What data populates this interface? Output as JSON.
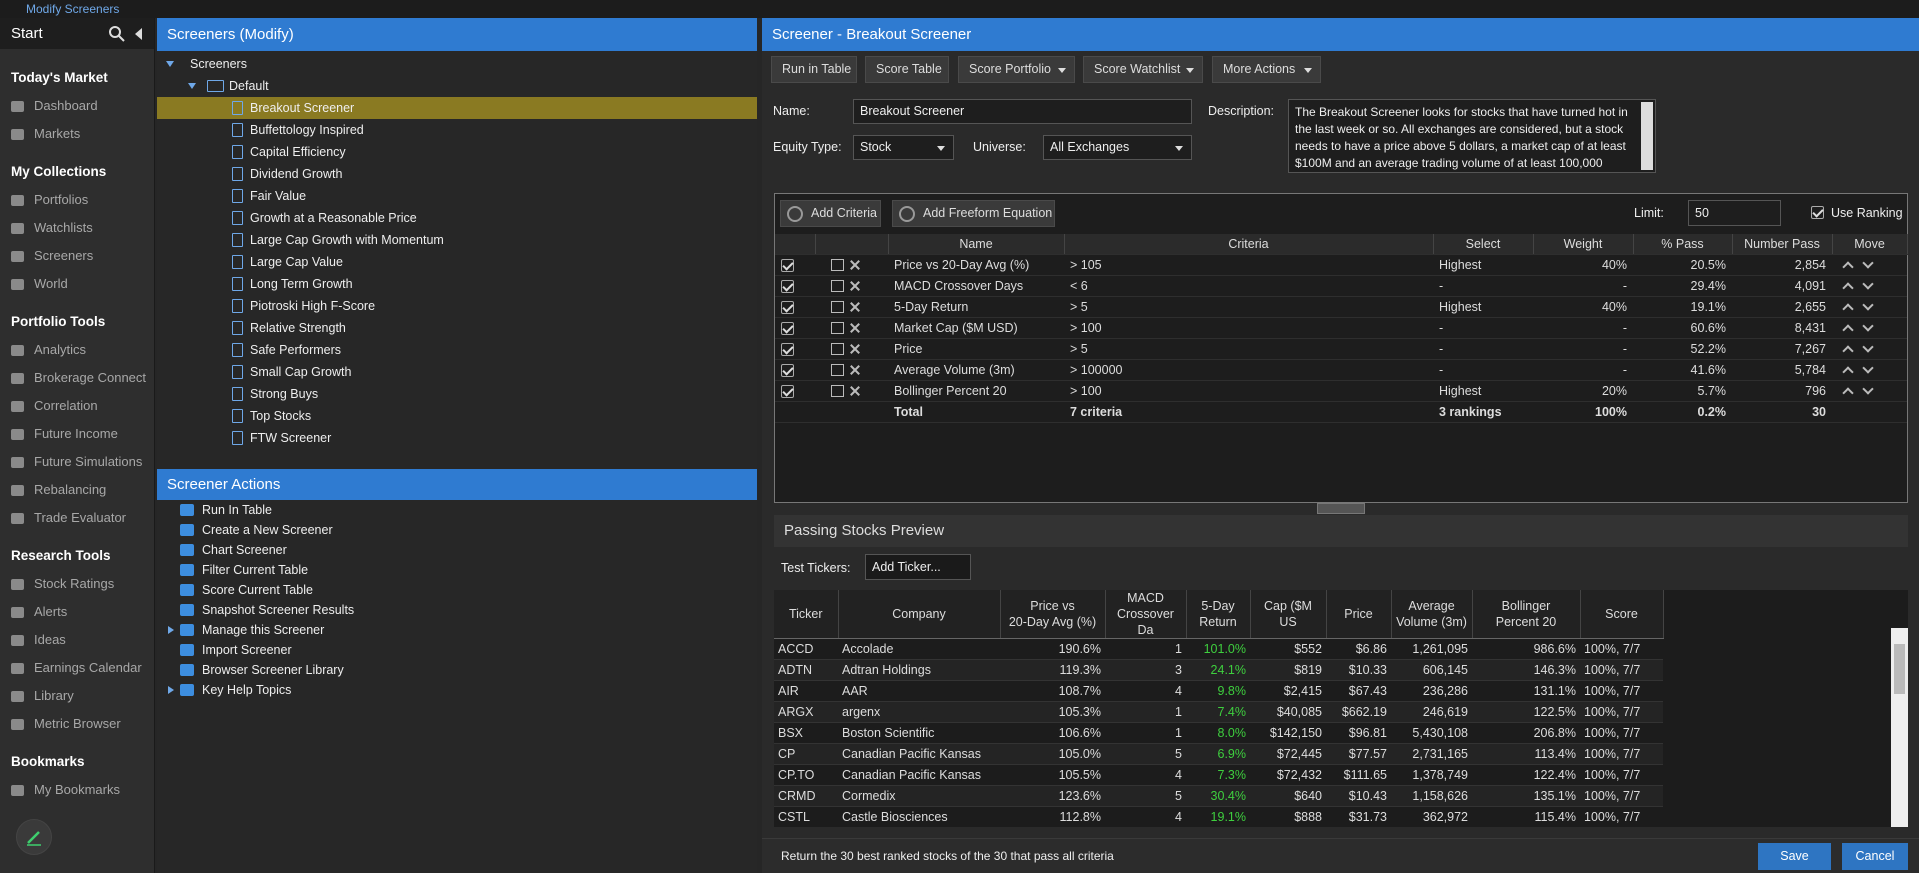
{
  "topbar": {
    "breadcrumb": "Modify Screeners"
  },
  "sidebar": {
    "start": "Start",
    "sections": [
      {
        "title": "Today's Market",
        "items": [
          "Dashboard",
          "Markets"
        ]
      },
      {
        "title": "My Collections",
        "items": [
          "Portfolios",
          "Watchlists",
          "Screeners",
          "World"
        ]
      },
      {
        "title": "Portfolio Tools",
        "items": [
          "Analytics",
          "Brokerage Connect",
          "Correlation",
          "Future Income",
          "Future Simulations",
          "Rebalancing",
          "Trade Evaluator"
        ]
      },
      {
        "title": "Research Tools",
        "items": [
          "Stock Ratings",
          "Alerts",
          "Ideas",
          "Earnings Calendar",
          "Library",
          "Metric Browser"
        ]
      },
      {
        "title": "Bookmarks",
        "items": [
          "My Bookmarks"
        ]
      }
    ]
  },
  "tree": {
    "title": "Screeners (Modify)",
    "root": "Screeners",
    "folder": "Default",
    "items": [
      "Breakout Screener",
      "Buffettology Inspired",
      "Capital Efficiency",
      "Dividend Growth",
      "Fair Value",
      "Growth at a Reasonable Price",
      "Large Cap Growth with Momentum",
      "Large Cap Value",
      "Long Term Growth",
      "Piotroski High F-Score",
      "Relative Strength",
      "Safe Performers",
      "Small Cap Growth",
      "Strong Buys",
      "Top Stocks",
      "FTW Screener"
    ]
  },
  "actions": {
    "title": "Screener Actions",
    "items": [
      "Run In Table",
      "Create a New Screener",
      "Chart Screener",
      "Filter Current Table",
      "Score Current Table",
      "Snapshot Screener Results",
      "Manage this Screener",
      "Import Screener",
      "Browser Screener Library",
      "Key Help Topics"
    ]
  },
  "editor": {
    "title": "Screener - Breakout Screener",
    "toolbar": [
      "Run in Table",
      "Score Table",
      "Score Portfolio",
      "Score Watchlist",
      "More Actions"
    ],
    "form": {
      "name_label": "Name:",
      "name": "Breakout Screener",
      "equity_label": "Equity Type:",
      "equity": "Stock",
      "universe_label": "Universe:",
      "universe": "All Exchanges",
      "description_label": "Description:",
      "description": "The Breakout Screener looks for stocks that have turned hot in the last week or so. All exchanges are considered, but a stock needs to have a price above 5 dollars, a market cap of at least $100M and an average trading volume of at least 100,000"
    }
  },
  "criteria": {
    "add_criteria": "Add Criteria",
    "add_freeform": "Add Freeform Equation",
    "limit_label": "Limit:",
    "limit": "50",
    "use_ranking": "Use Ranking",
    "columns": [
      "Name",
      "Criteria",
      "Select",
      "Weight",
      "% Pass",
      "Number Pass",
      "Move"
    ],
    "rows": [
      [
        "Price vs 20-Day Avg (%)",
        "> 105",
        "Highest",
        "40%",
        "20.5%",
        "2,854"
      ],
      [
        "MACD Crossover Days",
        "< 6",
        "-",
        "-",
        "29.4%",
        "4,091"
      ],
      [
        "5-Day Return",
        "> 5",
        "Highest",
        "40%",
        "19.1%",
        "2,655"
      ],
      [
        "Market Cap ($M USD)",
        "> 100",
        "-",
        "-",
        "60.6%",
        "8,431"
      ],
      [
        "Price",
        "> 5",
        "-",
        "-",
        "52.2%",
        "7,267"
      ],
      [
        "Average Volume (3m)",
        "> 100000",
        "-",
        "-",
        "41.6%",
        "5,784"
      ],
      [
        "Bollinger Percent 20",
        "> 100",
        "Highest",
        "20%",
        "5.7%",
        "796"
      ]
    ],
    "total": [
      "Total",
      "7 criteria",
      "3 rankings",
      "100%",
      "0.2%",
      "30"
    ]
  },
  "preview": {
    "title": "Passing Stocks Preview",
    "test_tickers": "Test Tickers:",
    "ticker_placeholder": "Add Ticker...",
    "columns": [
      "Ticker",
      "Company",
      "Price vs\n20-Day Avg (%)",
      "MACD\nCrossover Da",
      "5-Day\nReturn",
      "Cap ($M US",
      "Price",
      "Average\nVolume (3m)",
      "Bollinger\nPercent 20",
      "Score"
    ],
    "rows": [
      [
        "ACCD",
        "Accolade",
        "190.6%",
        "1",
        "101.0%",
        "$552",
        "$6.86",
        "1,261,095",
        "986.6%",
        "100%, 7/7"
      ],
      [
        "ADTN",
        "Adtran Holdings",
        "119.3%",
        "3",
        "24.1%",
        "$819",
        "$10.33",
        "606,145",
        "146.3%",
        "100%, 7/7"
      ],
      [
        "AIR",
        "AAR",
        "108.7%",
        "4",
        "9.8%",
        "$2,415",
        "$67.43",
        "236,286",
        "131.1%",
        "100%, 7/7"
      ],
      [
        "ARGX",
        "argenx",
        "105.3%",
        "1",
        "7.4%",
        "$40,085",
        "$662.19",
        "246,619",
        "122.5%",
        "100%, 7/7"
      ],
      [
        "BSX",
        "Boston Scientific",
        "106.6%",
        "1",
        "8.0%",
        "$142,150",
        "$96.81",
        "5,430,108",
        "206.8%",
        "100%, 7/7"
      ],
      [
        "CP",
        "Canadian Pacific Kansas",
        "105.0%",
        "5",
        "6.9%",
        "$72,445",
        "$77.57",
        "2,731,165",
        "113.4%",
        "100%, 7/7"
      ],
      [
        "CP.TO",
        "Canadian Pacific Kansas",
        "105.5%",
        "4",
        "7.3%",
        "$72,432",
        "$111.65",
        "1,378,749",
        "122.4%",
        "100%, 7/7"
      ],
      [
        "CRMD",
        "Cormedix",
        "123.6%",
        "5",
        "30.4%",
        "$640",
        "$10.43",
        "1,158,626",
        "135.1%",
        "100%, 7/7"
      ],
      [
        "CSTL",
        "Castle Biosciences",
        "112.8%",
        "4",
        "19.1%",
        "$888",
        "$31.73",
        "362,972",
        "115.4%",
        "100%, 7/7"
      ]
    ]
  },
  "footer": {
    "summary": "Return the 30 best ranked stocks of the 30 that pass all criteria",
    "save": "Save",
    "cancel": "Cancel"
  }
}
